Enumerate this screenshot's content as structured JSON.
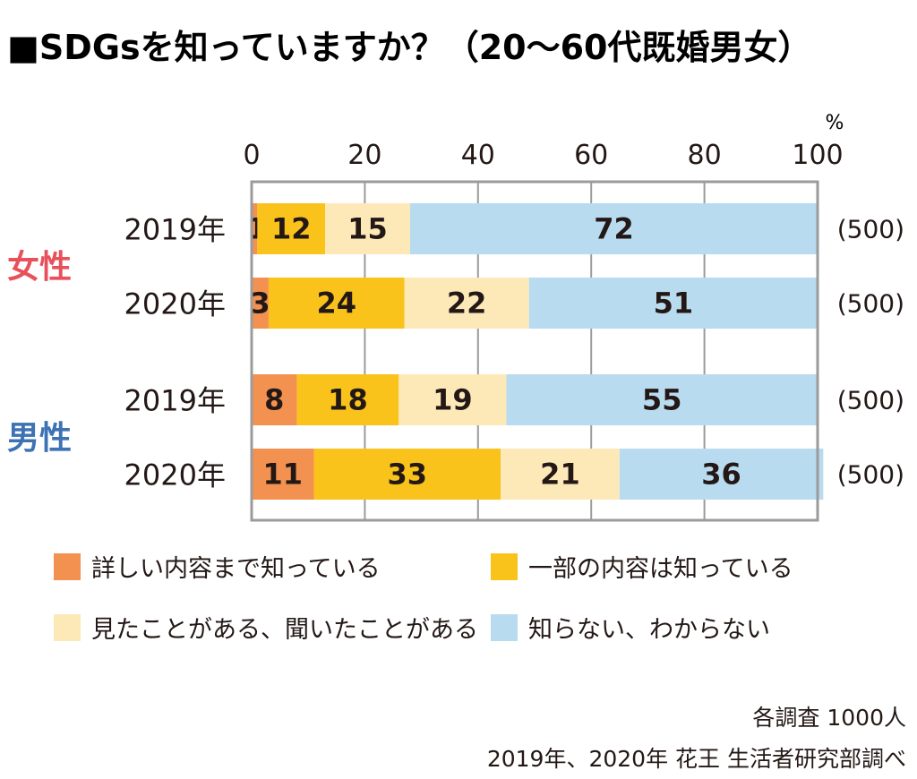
{
  "chart_data": {
    "type": "bar",
    "orientation": "horizontal",
    "stacked": true,
    "title": "■SDGsを知っていますか？（20〜60代既婚男女）",
    "unit": "%",
    "xlim": [
      0,
      100
    ],
    "x_ticks": [
      "0",
      "20",
      "40",
      "60",
      "80",
      "100"
    ],
    "grid": true,
    "legend_position": "bottom",
    "groups": [
      {
        "label": "女性",
        "color": "#e8505b",
        "rows": [
          {
            "year": "2019年",
            "n": "(500)",
            "values": [
              1,
              12,
              15,
              72
            ]
          },
          {
            "year": "2020年",
            "n": "(500)",
            "values": [
              3,
              24,
              22,
              51
            ]
          }
        ]
      },
      {
        "label": "男性",
        "color": "#3d72b4",
        "rows": [
          {
            "year": "2019年",
            "n": "(500)",
            "values": [
              8,
              18,
              19,
              55
            ]
          },
          {
            "year": "2020年",
            "n": "(500)",
            "values": [
              11,
              33,
              21,
              36
            ]
          }
        ]
      }
    ],
    "series": [
      {
        "name": "詳しい内容まで知っている",
        "color": "#f39150"
      },
      {
        "name": "一部の内容は知っている",
        "color": "#f9c31c"
      },
      {
        "name": "見たことがある、聞いたことがある",
        "color": "#fde9b8"
      },
      {
        "name": "知らない、わからない",
        "color": "#b8dbef"
      }
    ],
    "notes": [
      "各調査 1000人",
      "2019年、2020年 花王 生活者研究部調べ"
    ]
  }
}
